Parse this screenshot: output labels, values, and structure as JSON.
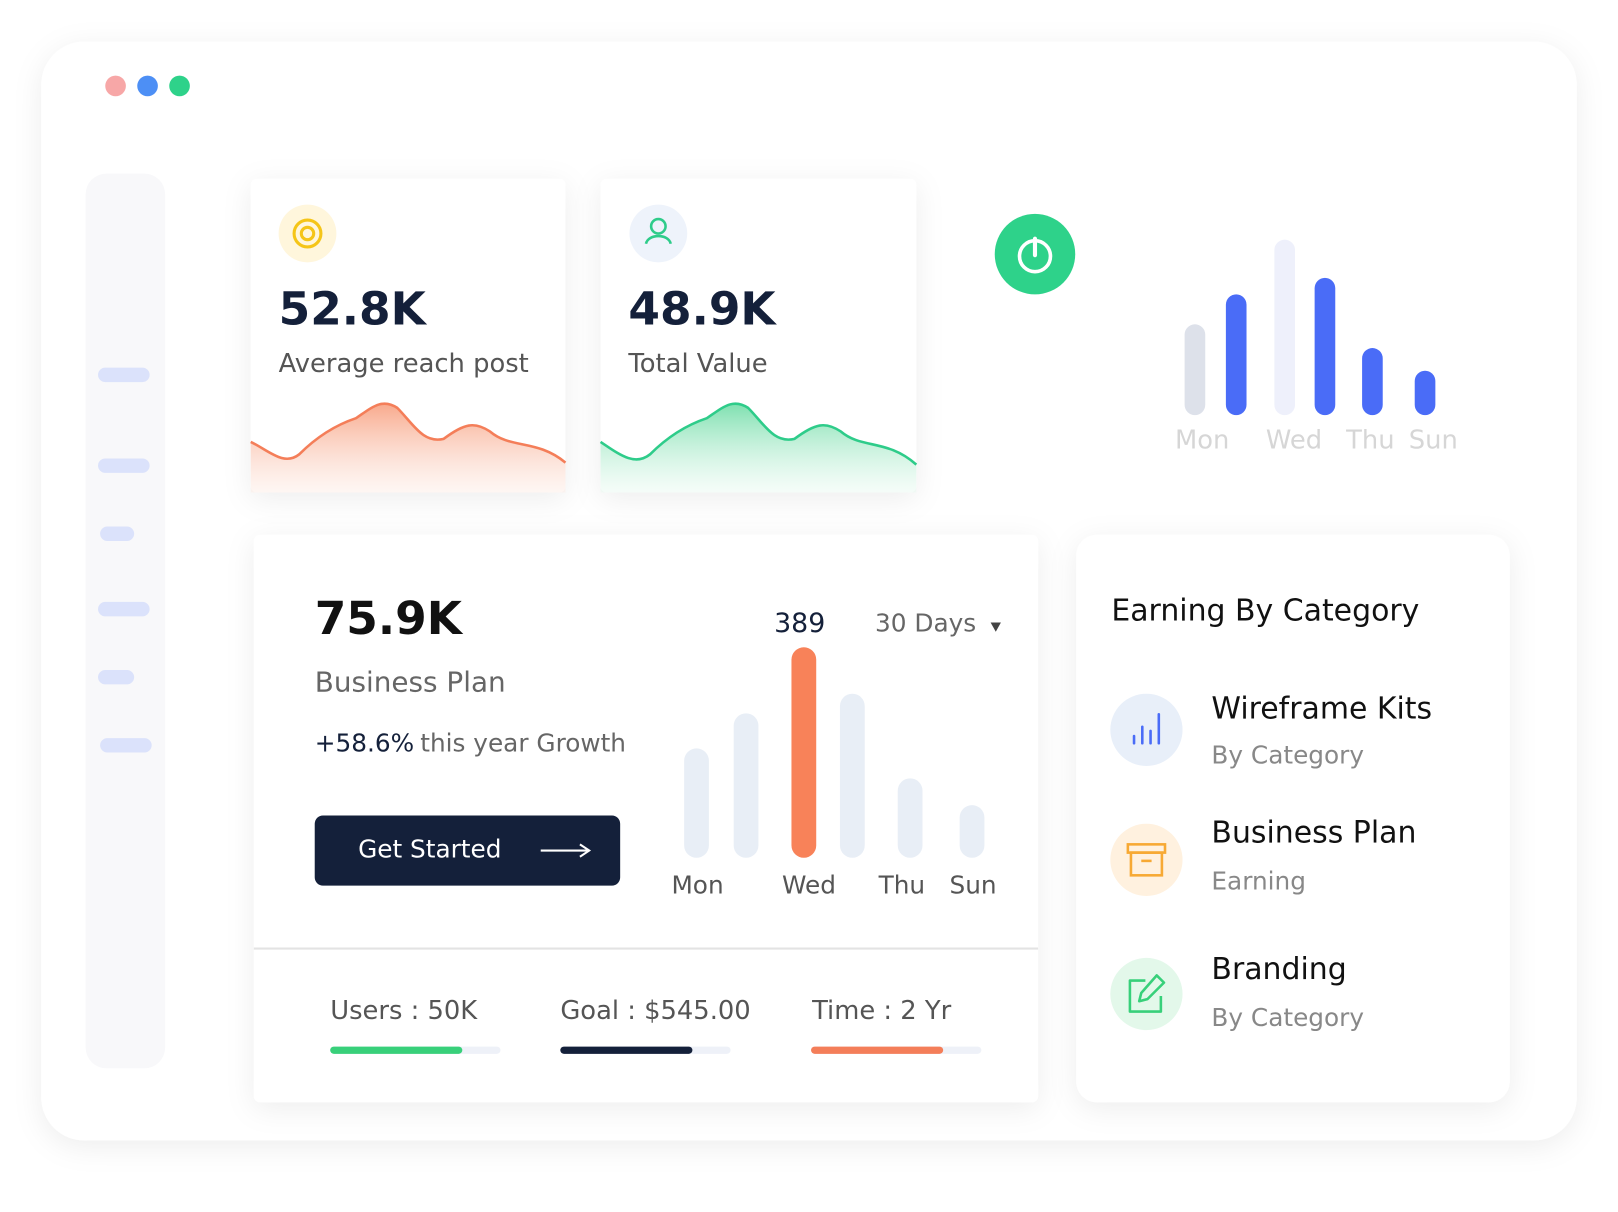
{
  "stats": [
    {
      "value": "52.8K",
      "label": "Average reach post"
    },
    {
      "value": "48.9K",
      "label": "Total Value"
    }
  ],
  "mini_chart": {
    "days": [
      "Mon",
      "Wed",
      "Thu",
      "Sun"
    ]
  },
  "plan_card": {
    "value": "75.9K",
    "title": "Business Plan",
    "growth": "+58.6%",
    "growth_text": "this year Growth",
    "button": "Get Started",
    "chart_peak": "389",
    "period": "30 Days",
    "days": [
      "Mon",
      "Wed",
      "Thu",
      "Sun"
    ],
    "metrics": [
      "Users : 50K",
      "Goal : $545.00",
      "Time : 2 Yr"
    ]
  },
  "earning": {
    "title": "Earning By Category",
    "items": [
      {
        "title": "Wireframe Kits",
        "subtitle": "By Category"
      },
      {
        "title": "Business Plan",
        "subtitle": "Earning"
      },
      {
        "title": "Branding",
        "subtitle": "By Category"
      }
    ]
  }
}
